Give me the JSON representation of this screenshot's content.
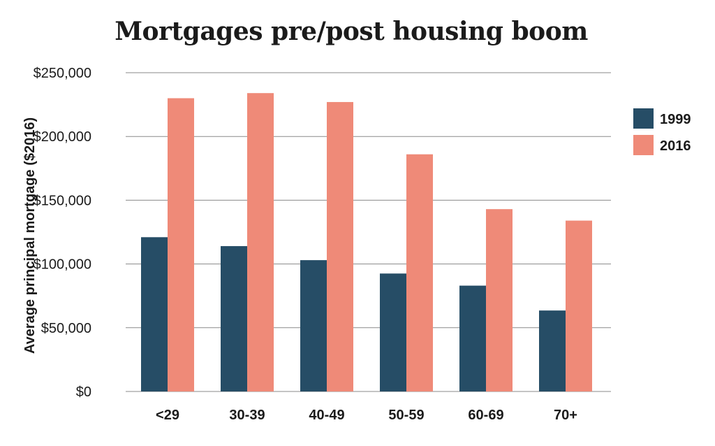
{
  "chart_data": {
    "type": "bar",
    "title": "Mortgages pre/post housing boom",
    "xlabel": "",
    "ylabel": "Average principal mortgage ($2016)",
    "categories": [
      "<29",
      "30-39",
      "40-49",
      "50-59",
      "60-69",
      "70+"
    ],
    "series": [
      {
        "name": "1999",
        "values": [
          121000,
          114000,
          103000,
          92500,
          83000,
          63500
        ],
        "color": "#264d66"
      },
      {
        "name": "2016",
        "values": [
          230000,
          234000,
          227000,
          186000,
          143000,
          134000
        ],
        "color": "#ef8a78"
      }
    ],
    "ylim": [
      0,
      250000
    ],
    "yticks": [
      0,
      50000,
      100000,
      150000,
      200000,
      250000
    ],
    "ytick_labels": [
      "$0",
      "$50,000",
      "$100,000",
      "$150,000",
      "$200,000",
      "$250,000"
    ],
    "grid": true,
    "legend_position": "right"
  }
}
